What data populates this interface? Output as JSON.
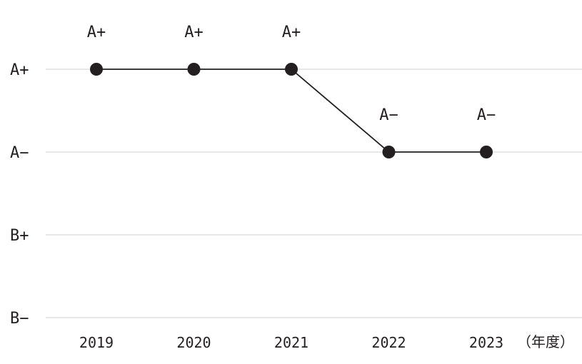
{
  "chart_data": {
    "type": "line",
    "categories": [
      "2019",
      "2020",
      "2021",
      "2022",
      "2023"
    ],
    "y_levels": [
      "A+",
      "A−",
      "B+",
      "B−"
    ],
    "series": [
      {
        "values": [
          "A+",
          "A+",
          "A+",
          "A−",
          "A−"
        ]
      }
    ],
    "data_labels": [
      "A+",
      "A+",
      "A+",
      "A−",
      "A−"
    ],
    "x_unit_label": "（年度）",
    "grid": true,
    "colors": {
      "line": "#231f20",
      "point": "#231f20",
      "grid": "#d9d9d9"
    }
  }
}
